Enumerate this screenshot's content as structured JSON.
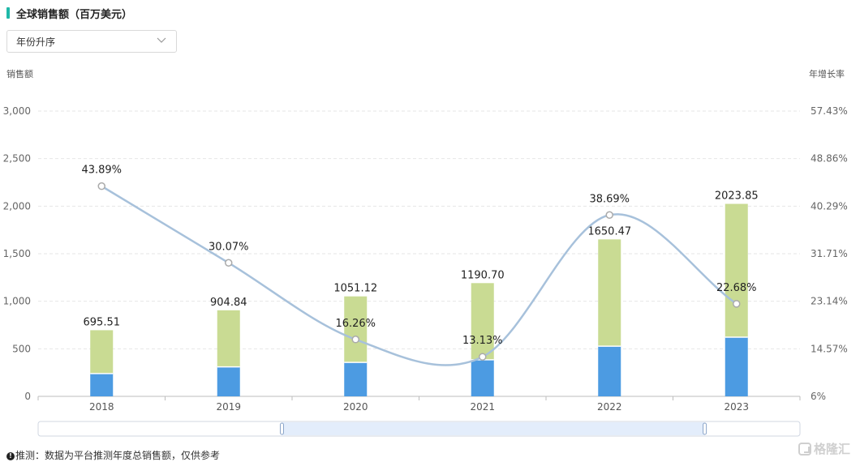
{
  "header": {
    "title": "全球销售额（百万美元）",
    "sort_select": "年份升序"
  },
  "axis_titles": {
    "left": "销售额",
    "right": "年增长率"
  },
  "footer": {
    "note": "推测：数据为平台推测年度总销售额，仅供参考"
  },
  "watermark": "格隆汇",
  "chart_data": {
    "type": "bar",
    "categories": [
      "2018",
      "2019",
      "2020",
      "2021",
      "2022",
      "2023"
    ],
    "series": [
      {
        "type": "stacked-bar",
        "color": "#4c9be2",
        "values": [
          240,
          310,
          357,
          385,
          527,
          622
        ]
      },
      {
        "type": "stacked-bar",
        "color": "#c9db93",
        "values": [
          455.51,
          594.84,
          694.12,
          805.7,
          1123.47,
          1401.85
        ]
      },
      {
        "type": "line",
        "axis": "right",
        "color": "#a7c1db",
        "values": [
          43.89,
          30.07,
          16.26,
          13.13,
          38.69,
          22.68
        ]
      }
    ],
    "bar_totals": [
      "695.51",
      "904.84",
      "1051.12",
      "1190.70",
      "1650.47",
      "2023.85"
    ],
    "line_labels": [
      "43.89%",
      "30.07%",
      "16.26%",
      "13.13%",
      "38.69%",
      "22.68%"
    ],
    "ylim": [
      0,
      3000
    ],
    "yticks": [
      "0",
      "500",
      "1,000",
      "1,500",
      "2,000",
      "2,500",
      "3,000"
    ],
    "y2lim": [
      6,
      57.43
    ],
    "y2ticks": [
      "6%",
      "14.57%",
      "23.14%",
      "31.71%",
      "40.29%",
      "48.86%",
      "57.43%"
    ],
    "grid": true,
    "zoom_range": [
      0.32,
      0.875
    ]
  }
}
